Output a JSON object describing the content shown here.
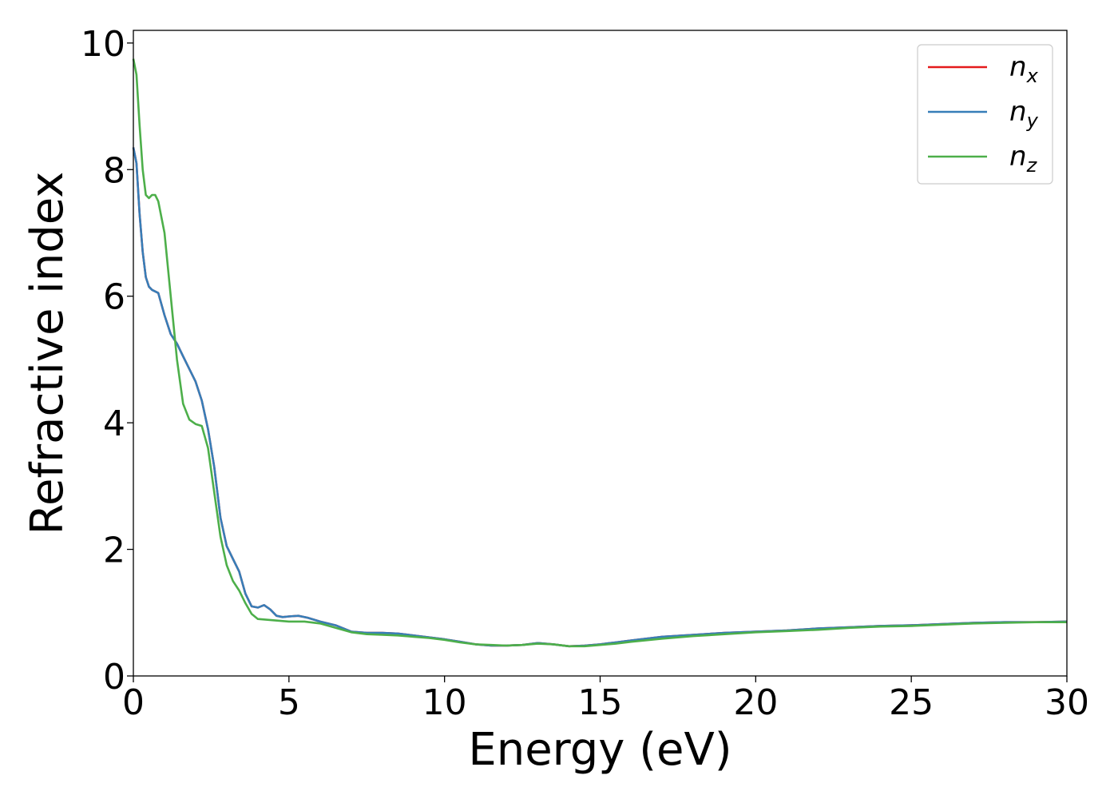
{
  "chart_data": {
    "type": "line",
    "title": "",
    "xlabel": "Energy (eV)",
    "ylabel": "Refractive index",
    "xlim": [
      0,
      30
    ],
    "ylim": [
      0,
      10.2
    ],
    "xticks": [
      0,
      5,
      10,
      15,
      20,
      25,
      30
    ],
    "yticks": [
      0,
      2,
      4,
      6,
      8,
      10
    ],
    "grid": false,
    "legend_position": "top-right",
    "series": [
      {
        "name": "n_x",
        "label_main": "n",
        "label_sub": "x",
        "color": "#e41a1c",
        "x": [
          0,
          0.1,
          0.2,
          0.3,
          0.4,
          0.5,
          0.6,
          0.8,
          1.0,
          1.2,
          1.4,
          1.6,
          1.8,
          2.0,
          2.2,
          2.4,
          2.6,
          2.8,
          3.0,
          3.2,
          3.4,
          3.6,
          3.8,
          4.0,
          4.2,
          4.4,
          4.6,
          4.8,
          5.0,
          5.3,
          5.6,
          6.0,
          6.5,
          7.0,
          7.5,
          8.0,
          8.5,
          9.0,
          9.5,
          10.0,
          10.5,
          11.0,
          11.5,
          12.0,
          12.5,
          13.0,
          13.5,
          14.0,
          14.5,
          15.0,
          15.5,
          16.0,
          17.0,
          18.0,
          19.0,
          20.0,
          21.0,
          22.0,
          23.0,
          24.0,
          25.0,
          26.0,
          27.0,
          28.0,
          29.0,
          30.0
        ],
        "y": [
          8.35,
          8.1,
          7.3,
          6.7,
          6.3,
          6.15,
          6.1,
          6.05,
          5.7,
          5.4,
          5.25,
          5.05,
          4.85,
          4.65,
          4.35,
          3.9,
          3.3,
          2.5,
          2.05,
          1.85,
          1.65,
          1.3,
          1.1,
          1.08,
          1.12,
          1.05,
          0.95,
          0.93,
          0.94,
          0.95,
          0.92,
          0.86,
          0.8,
          0.7,
          0.68,
          0.68,
          0.67,
          0.64,
          0.61,
          0.58,
          0.54,
          0.5,
          0.48,
          0.48,
          0.49,
          0.52,
          0.5,
          0.47,
          0.48,
          0.5,
          0.53,
          0.56,
          0.62,
          0.65,
          0.68,
          0.7,
          0.72,
          0.75,
          0.77,
          0.79,
          0.8,
          0.82,
          0.84,
          0.85,
          0.85,
          0.86
        ]
      },
      {
        "name": "n_y",
        "label_main": "n",
        "label_sub": "y",
        "color": "#377eb8",
        "x": [
          0,
          0.1,
          0.2,
          0.3,
          0.4,
          0.5,
          0.6,
          0.8,
          1.0,
          1.2,
          1.4,
          1.6,
          1.8,
          2.0,
          2.2,
          2.4,
          2.6,
          2.8,
          3.0,
          3.2,
          3.4,
          3.6,
          3.8,
          4.0,
          4.2,
          4.4,
          4.6,
          4.8,
          5.0,
          5.3,
          5.6,
          6.0,
          6.5,
          7.0,
          7.5,
          8.0,
          8.5,
          9.0,
          9.5,
          10.0,
          10.5,
          11.0,
          11.5,
          12.0,
          12.5,
          13.0,
          13.5,
          14.0,
          14.5,
          15.0,
          15.5,
          16.0,
          17.0,
          18.0,
          19.0,
          20.0,
          21.0,
          22.0,
          23.0,
          24.0,
          25.0,
          26.0,
          27.0,
          28.0,
          29.0,
          30.0
        ],
        "y": [
          8.35,
          8.1,
          7.3,
          6.7,
          6.3,
          6.15,
          6.1,
          6.05,
          5.7,
          5.4,
          5.25,
          5.05,
          4.85,
          4.65,
          4.35,
          3.9,
          3.3,
          2.5,
          2.05,
          1.85,
          1.65,
          1.3,
          1.1,
          1.08,
          1.12,
          1.05,
          0.95,
          0.93,
          0.94,
          0.95,
          0.92,
          0.86,
          0.8,
          0.7,
          0.68,
          0.68,
          0.67,
          0.64,
          0.61,
          0.58,
          0.54,
          0.5,
          0.48,
          0.48,
          0.49,
          0.52,
          0.5,
          0.47,
          0.48,
          0.5,
          0.53,
          0.56,
          0.62,
          0.65,
          0.68,
          0.7,
          0.72,
          0.75,
          0.77,
          0.79,
          0.8,
          0.82,
          0.84,
          0.85,
          0.85,
          0.86
        ]
      },
      {
        "name": "n_z",
        "label_main": "n",
        "label_sub": "z",
        "color": "#4daf4a",
        "x": [
          0,
          0.1,
          0.2,
          0.3,
          0.4,
          0.5,
          0.6,
          0.7,
          0.8,
          1.0,
          1.2,
          1.4,
          1.6,
          1.8,
          2.0,
          2.2,
          2.4,
          2.6,
          2.8,
          3.0,
          3.2,
          3.4,
          3.6,
          3.8,
          4.0,
          4.5,
          5.0,
          5.5,
          6.0,
          6.5,
          7.0,
          7.5,
          8.0,
          8.5,
          9.0,
          9.5,
          10.0,
          10.5,
          11.0,
          11.5,
          12.0,
          12.5,
          13.0,
          13.5,
          14.0,
          14.5,
          15.0,
          15.5,
          16.0,
          17.0,
          18.0,
          19.0,
          20.0,
          21.0,
          22.0,
          23.0,
          24.0,
          25.0,
          26.0,
          27.0,
          28.0,
          29.0,
          30.0
        ],
        "y": [
          9.75,
          9.5,
          8.7,
          8.0,
          7.6,
          7.55,
          7.6,
          7.6,
          7.5,
          7.0,
          6.0,
          5.0,
          4.3,
          4.05,
          3.98,
          3.95,
          3.6,
          2.9,
          2.2,
          1.75,
          1.5,
          1.35,
          1.15,
          0.98,
          0.9,
          0.88,
          0.86,
          0.86,
          0.83,
          0.76,
          0.69,
          0.66,
          0.65,
          0.64,
          0.62,
          0.6,
          0.57,
          0.53,
          0.5,
          0.49,
          0.48,
          0.49,
          0.51,
          0.5,
          0.47,
          0.47,
          0.49,
          0.51,
          0.54,
          0.59,
          0.63,
          0.66,
          0.69,
          0.71,
          0.73,
          0.76,
          0.78,
          0.79,
          0.81,
          0.83,
          0.84,
          0.85,
          0.85
        ]
      }
    ]
  }
}
